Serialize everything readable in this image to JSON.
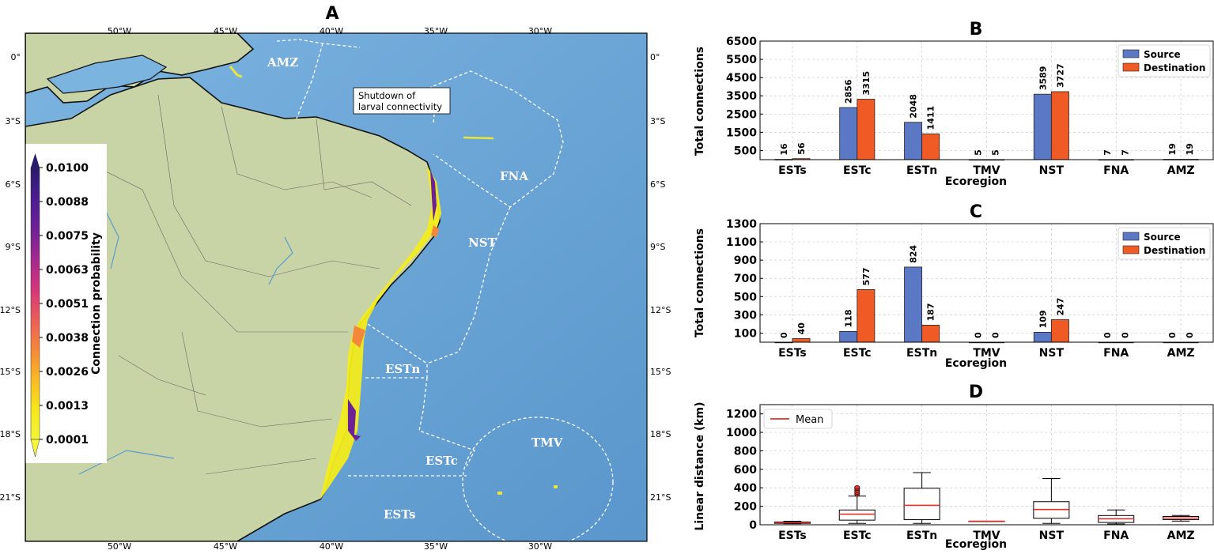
{
  "panels": {
    "map": {
      "letter": "A",
      "lon_labels": [
        "50°W",
        "45°W",
        "40°W",
        "35°W",
        "30°W"
      ],
      "lat_labels": [
        "0°",
        "3°S",
        "6°S",
        "9°S",
        "12°S",
        "15°S",
        "18°S",
        "21°S"
      ],
      "regions": [
        "AMZ",
        "FNA",
        "NST",
        "ESTn",
        "ESTc",
        "ESTs",
        "TMV"
      ],
      "annotation_line1": "Shutdown of",
      "annotation_line2": "larval connectivity",
      "colorbar": {
        "label": "Connection probability",
        "ticks": [
          "0.0100",
          "0.0088",
          "0.0075",
          "0.0063",
          "0.0051",
          "0.0038",
          "0.0026",
          "0.0013",
          "0.0001"
        ],
        "colors": [
          "#2a1a6b",
          "#4b1d8f",
          "#6d2196",
          "#a12a8f",
          "#d3357a",
          "#ea5c5a",
          "#f5873b",
          "#fbb925",
          "#f6e71a",
          "#f5f53a"
        ]
      },
      "colors": {
        "ocean": "#6fa8d8",
        "land": "#c8d3a5",
        "coast": "#111111"
      }
    },
    "B": {
      "letter": "B",
      "ylabel": "Total connections",
      "xlabel": "Ecoregion",
      "legend": [
        "Source",
        "Destination"
      ]
    },
    "C": {
      "letter": "C",
      "ylabel": "Total connections",
      "xlabel": "Ecoregion",
      "legend": [
        "Source",
        "Destination"
      ]
    },
    "D": {
      "letter": "D",
      "ylabel": "Linear distance (km)",
      "xlabel": "Ecoregion",
      "legend": [
        "Mean"
      ]
    }
  },
  "chart_data": [
    {
      "type": "bar",
      "panel": "B",
      "categories": [
        "ESTs",
        "ESTc",
        "ESTn",
        "TMV",
        "NST",
        "FNA",
        "AMZ"
      ],
      "series": [
        {
          "name": "Source",
          "color": "#5b78c4",
          "values": [
            16,
            2856,
            2048,
            5,
            3589,
            7,
            19
          ]
        },
        {
          "name": "Destination",
          "color": "#f05a24",
          "values": [
            56,
            3315,
            1411,
            5,
            3727,
            7,
            19
          ]
        }
      ],
      "ylim": [
        0,
        6500
      ],
      "yticks": [
        500,
        1500,
        2500,
        3500,
        4500,
        5500,
        6500
      ],
      "ytick_labels": [
        "500",
        "1500",
        "2500",
        "3500",
        "4500",
        "5500",
        "6500"
      ],
      "xlabel": "Ecoregion",
      "ylabel": "Total connections",
      "legend_position": "top-right",
      "grid": true
    },
    {
      "type": "bar",
      "panel": "C",
      "categories": [
        "ESTs",
        "ESTc",
        "ESTn",
        "TMV",
        "NST",
        "FNA",
        "AMZ"
      ],
      "series": [
        {
          "name": "Source",
          "color": "#5b78c4",
          "values": [
            0,
            118,
            824,
            0,
            109,
            0,
            0
          ]
        },
        {
          "name": "Destination",
          "color": "#f05a24",
          "values": [
            40,
            577,
            187,
            0,
            247,
            0,
            0
          ]
        }
      ],
      "ylim": [
        0,
        1300
      ],
      "yticks": [
        100,
        300,
        500,
        700,
        900,
        1100,
        1300
      ],
      "ytick_labels": [
        "100",
        "300",
        "500",
        "700",
        "900",
        "1100",
        "1300"
      ],
      "xlabel": "Ecoregion",
      "ylabel": "Total connections",
      "legend_position": "top-right",
      "grid": true
    },
    {
      "type": "box",
      "panel": "D",
      "categories": [
        "ESTs",
        "ESTc",
        "ESTn",
        "TMV",
        "NST",
        "FNA",
        "AMZ"
      ],
      "boxes": [
        {
          "min": 12,
          "q1": 15,
          "median": 22,
          "q3": 30,
          "max": 38,
          "mean": 22
        },
        {
          "min": 15,
          "q1": 50,
          "median": 110,
          "q3": 160,
          "max": 310,
          "mean": 115,
          "outliers": [
            330,
            350,
            370,
            390,
            405
          ]
        },
        {
          "min": 15,
          "q1": 55,
          "median": 210,
          "q3": 395,
          "max": 565,
          "mean": 210
        },
        {
          "min": 38,
          "q1": 38,
          "median": 38,
          "q3": 38,
          "max": 38,
          "mean": 38
        },
        {
          "min": 15,
          "q1": 70,
          "median": 165,
          "q3": 250,
          "max": 500,
          "mean": 165
        },
        {
          "min": 10,
          "q1": 25,
          "median": 60,
          "q3": 100,
          "max": 160,
          "mean": 65
        },
        {
          "min": 40,
          "q1": 55,
          "median": 70,
          "q3": 90,
          "max": 100,
          "mean": 72
        }
      ],
      "ylim": [
        0,
        1300
      ],
      "yticks": [
        0,
        200,
        400,
        600,
        800,
        1000,
        1200
      ],
      "ytick_labels": [
        "0",
        "200",
        "400",
        "600",
        "800",
        "1000",
        "1200"
      ],
      "xlabel": "Ecoregion",
      "ylabel": "Linear distance (km)",
      "legend_position": "top-left",
      "legend": [
        "Mean"
      ],
      "grid": true
    }
  ]
}
